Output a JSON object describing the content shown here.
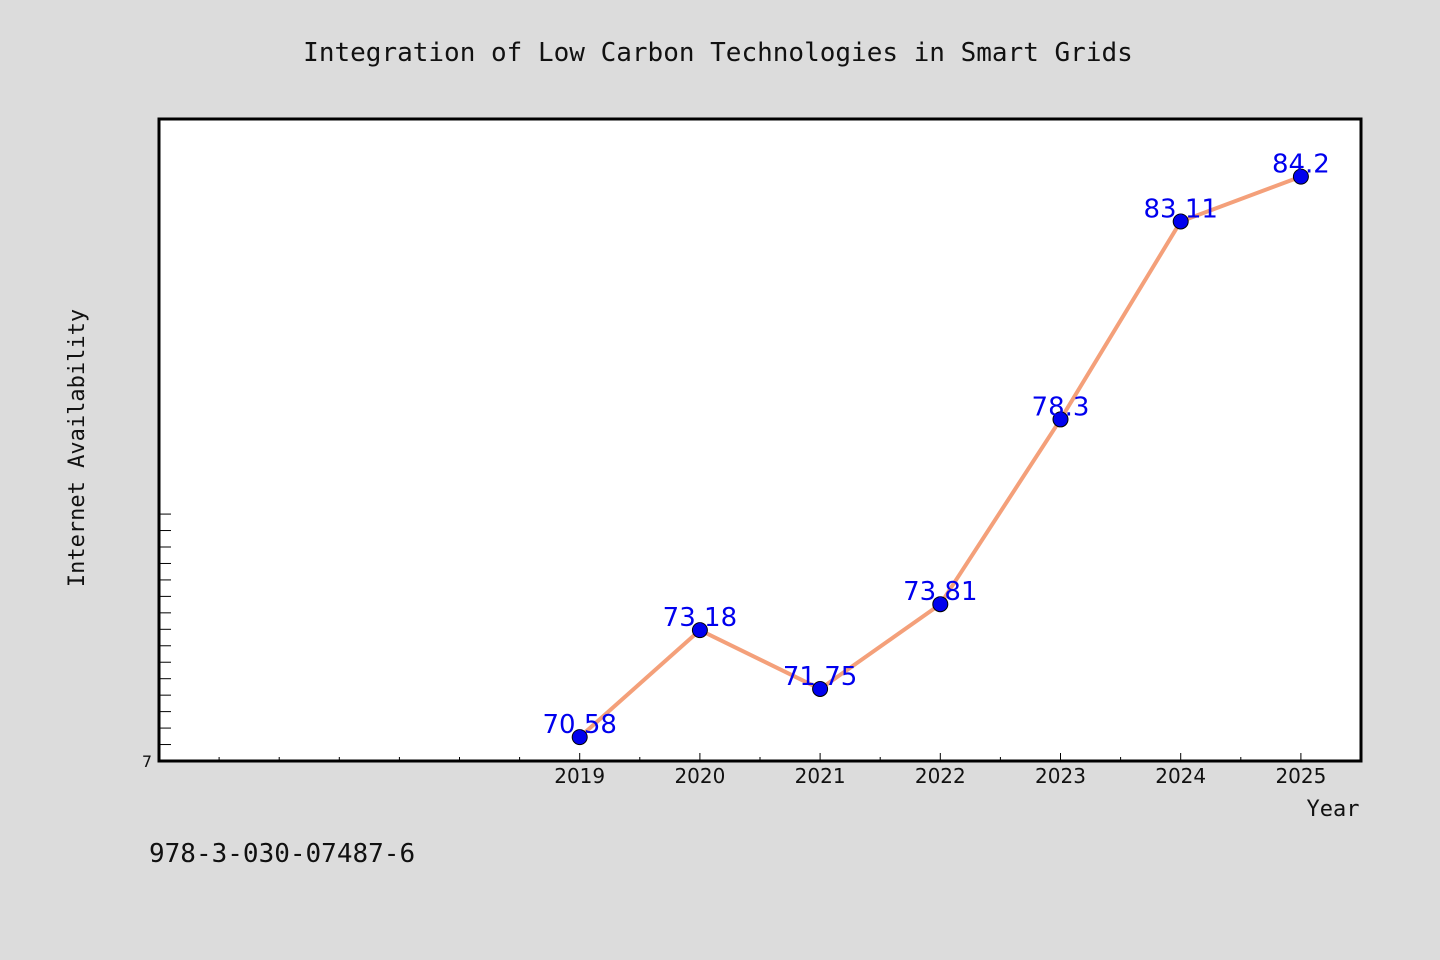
{
  "chart_data": {
    "type": "line",
    "title": "Integration of Low Carbon Technologies in Smart Grids",
    "xlabel": "Year",
    "ylabel": "Internet Availability",
    "categories": [
      "2019",
      "2020",
      "2021",
      "2022",
      "2023",
      "2024",
      "2025"
    ],
    "series": [
      {
        "values": [
          70.58,
          73.18,
          71.75,
          73.81,
          78.3,
          83.11,
          84.2
        ],
        "data_labels": [
          "70.58",
          "73.18",
          "71.75",
          "73.81",
          "78.3",
          "83.11",
          "84.2"
        ],
        "line_color": "#f4a07a",
        "marker_color": "#0000ee"
      }
    ],
    "y_tick_labels": [
      "7"
    ],
    "ylim": [
      70,
      85.6
    ],
    "xlim": [
      2015.5,
      2025.5
    ],
    "grid": false,
    "label_color": "#0000ee"
  },
  "footer": {
    "isbn": "978-3-030-07487-6"
  }
}
